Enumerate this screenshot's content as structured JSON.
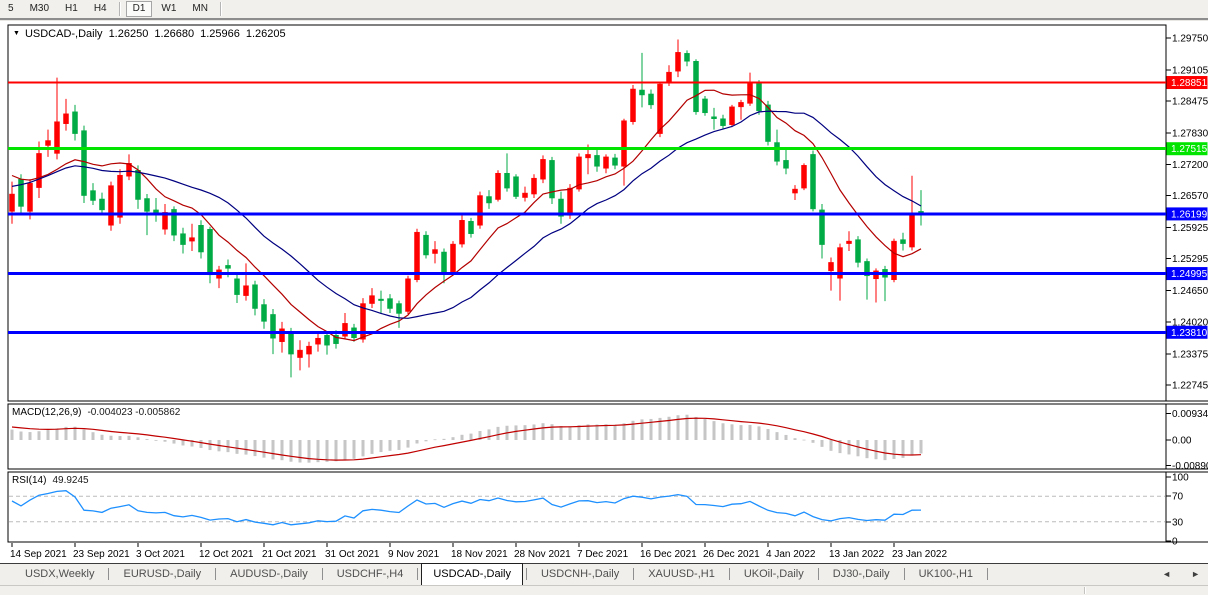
{
  "toolbar": {
    "timeframes": [
      {
        "label": "5",
        "active": false
      },
      {
        "label": "M30",
        "active": false
      },
      {
        "label": "H1",
        "active": false
      },
      {
        "label": "H4",
        "active": false
      },
      {
        "label": "D1",
        "active": true
      },
      {
        "label": "W1",
        "active": false
      },
      {
        "label": "MN",
        "active": false
      }
    ]
  },
  "chart": {
    "title": {
      "dropdown_icon": "▼",
      "symbol": "USDCAD-,Daily",
      "open": "1.26250",
      "high": "1.26680",
      "low": "1.25966",
      "close": "1.26205"
    }
  },
  "indicators": {
    "macd": {
      "label": "MACD(12,26,9)",
      "values": "-0.004023 -0.005862",
      "bar_color": "#C6C6C6",
      "signal_color": "#C00000",
      "axis": [
        {
          "text": "0.009345",
          "value": 0.009345
        },
        {
          "text": "0.00",
          "value": 0
        },
        {
          "text": "-0.008902",
          "value": -0.008902
        }
      ]
    },
    "rsi": {
      "label": "RSI(14)",
      "value": "49.9245",
      "color": "#1E90FF",
      "levels": [
        70,
        30
      ],
      "axis": [
        {
          "text": "100",
          "value": 100
        },
        {
          "text": "70",
          "value": 70
        },
        {
          "text": "30",
          "value": 30
        },
        {
          "text": "0",
          "value": 0
        }
      ]
    }
  },
  "tabs": {
    "scroll_left_icon": "◄",
    "scroll_right_icon": "►",
    "items": [
      {
        "label": "USDX,Weekly",
        "active": false
      },
      {
        "label": "EURUSD-,Daily",
        "active": false
      },
      {
        "label": "AUDUSD-,Daily",
        "active": false
      },
      {
        "label": "USDCHF-,H4",
        "active": false
      },
      {
        "label": "USDCAD-,Daily",
        "active": true
      },
      {
        "label": "USDCNH-,Daily",
        "active": false
      },
      {
        "label": "XAUUSD-,H1",
        "active": false
      },
      {
        "label": "UKOil-,Daily",
        "active": false
      },
      {
        "label": "DJ30-,Daily",
        "active": false
      },
      {
        "label": "UK100-,H1",
        "active": false
      }
    ]
  },
  "chart_data": {
    "type": "candlestick",
    "title": "USDCAD-,Daily",
    "up_color": "#FF0000",
    "down_color": "#00AA44",
    "y_axis": {
      "min": 1.22423,
      "max": 1.30012,
      "labels": [
        {
          "text": "1.29750",
          "value": 1.2975
        },
        {
          "text": "1.29105",
          "value": 1.29105
        },
        {
          "text": "1.28475",
          "value": 1.28475
        },
        {
          "text": "1.27830",
          "value": 1.2783
        },
        {
          "text": "1.27200",
          "value": 1.272
        },
        {
          "text": "1.26570",
          "value": 1.2657
        },
        {
          "text": "1.25925",
          "value": 1.25925
        },
        {
          "text": "1.25295",
          "value": 1.25295
        },
        {
          "text": "1.24650",
          "value": 1.2465
        },
        {
          "text": "1.24020",
          "value": 1.2402
        },
        {
          "text": "1.23375",
          "value": 1.23375
        },
        {
          "text": "1.22745",
          "value": 1.22745
        }
      ]
    },
    "hlines": [
      {
        "price": 1.28851,
        "color": "#FF0000",
        "width": 2,
        "label": "1.28851"
      },
      {
        "price": 1.27515,
        "color": "#00E400",
        "width": 3,
        "label": "1.27515"
      },
      {
        "price": 1.26199,
        "color": "#0000FF",
        "width": 3,
        "label": "1.26199"
      },
      {
        "price": 1.24995,
        "color": "#0000FF",
        "width": 3,
        "label": "1.24995"
      },
      {
        "price": 1.2381,
        "color": "#0000FF",
        "width": 3,
        "label": "1.23810"
      }
    ],
    "x_labels": [
      {
        "label": "14 Sep 2021",
        "index": 0
      },
      {
        "label": "23 Sep 2021",
        "index": 7
      },
      {
        "label": "3 Oct 2021",
        "index": 14
      },
      {
        "label": "12 Oct 2021",
        "index": 21
      },
      {
        "label": "21 Oct 2021",
        "index": 28
      },
      {
        "label": "31 Oct 2021",
        "index": 35
      },
      {
        "label": "9 Nov 2021",
        "index": 42
      },
      {
        "label": "18 Nov 2021",
        "index": 49
      },
      {
        "label": "28 Nov 2021",
        "index": 56
      },
      {
        "label": "7 Dec 2021",
        "index": 63
      },
      {
        "label": "16 Dec 2021",
        "index": 70
      },
      {
        "label": "26 Dec 2021",
        "index": 77
      },
      {
        "label": "4 Jan 2022",
        "index": 84
      },
      {
        "label": "13 Jan 2022",
        "index": 91
      },
      {
        "label": "23 Jan 2022",
        "index": 98
      }
    ],
    "moving_averages": [
      {
        "period": 10,
        "color": "#B30000"
      },
      {
        "period": 21,
        "color": "#000080"
      }
    ],
    "pre_closes": [
      1.248,
      1.25,
      1.252,
      1.254,
      1.256,
      1.258,
      1.2565,
      1.2585,
      1.26,
      1.262,
      1.264,
      1.2665,
      1.269,
      1.27,
      1.271,
      1.272,
      1.2715,
      1.271,
      1.27,
      1.2695,
      1.27,
      1.2705,
      1.271,
      1.27,
      1.2695,
      1.27
    ],
    "candles": [
      [
        1.2625,
        1.2685,
        1.26,
        1.266
      ],
      [
        1.269,
        1.27,
        1.2618,
        1.2635
      ],
      [
        1.2625,
        1.269,
        1.2609,
        1.2682
      ],
      [
        1.2673,
        1.2766,
        1.2652,
        1.2742
      ],
      [
        1.2758,
        1.279,
        1.2735,
        1.2768
      ],
      [
        1.2742,
        1.2895,
        1.273,
        1.2806
      ],
      [
        1.2802,
        1.2852,
        1.2788,
        1.2822
      ],
      [
        1.2826,
        1.284,
        1.2768,
        1.2782
      ],
      [
        1.2788,
        1.2798,
        1.2642,
        1.2657
      ],
      [
        1.2667,
        1.2682,
        1.2638,
        1.2647
      ],
      [
        1.265,
        1.2663,
        1.2617,
        1.2628
      ],
      [
        1.2597,
        1.2685,
        1.2586,
        1.2677
      ],
      [
        1.2613,
        1.271,
        1.26,
        1.2698
      ],
      [
        1.2696,
        1.274,
        1.2688,
        1.2722
      ],
      [
        1.2708,
        1.2718,
        1.263,
        1.2649
      ],
      [
        1.2651,
        1.266,
        1.2577,
        1.2625
      ],
      [
        1.2628,
        1.2652,
        1.2604,
        1.2618
      ],
      [
        1.2589,
        1.264,
        1.2578,
        1.2623
      ],
      [
        1.2629,
        1.2635,
        1.2565,
        1.2577
      ],
      [
        1.258,
        1.2592,
        1.254,
        1.2558
      ],
      [
        1.2565,
        1.26,
        1.2545,
        1.2572
      ],
      [
        1.2597,
        1.2607,
        1.253,
        1.2543
      ],
      [
        1.2589,
        1.2594,
        1.248,
        1.2497
      ],
      [
        1.249,
        1.2515,
        1.247,
        1.2507
      ],
      [
        1.2516,
        1.2528,
        1.2492,
        1.251
      ],
      [
        1.2489,
        1.2498,
        1.244,
        1.2457
      ],
      [
        1.2455,
        1.252,
        1.2445,
        1.2475
      ],
      [
        1.2477,
        1.2485,
        1.2415,
        1.2429
      ],
      [
        1.2437,
        1.2448,
        1.2388,
        1.2403
      ],
      [
        1.2417,
        1.2428,
        1.2337,
        1.2369
      ],
      [
        1.2362,
        1.2402,
        1.234,
        1.2388
      ],
      [
        1.2377,
        1.239,
        1.229,
        1.2337
      ],
      [
        1.233,
        1.2365,
        1.2304,
        1.2345
      ],
      [
        1.2337,
        1.2362,
        1.231,
        1.2353
      ],
      [
        1.2357,
        1.238,
        1.2342,
        1.2369
      ],
      [
        1.2375,
        1.2382,
        1.2336,
        1.2355
      ],
      [
        1.2375,
        1.2385,
        1.2348,
        1.2358
      ],
      [
        1.2373,
        1.242,
        1.2367,
        1.2399
      ],
      [
        1.239,
        1.2398,
        1.2362,
        1.237
      ],
      [
        1.2367,
        1.245,
        1.236,
        1.2439
      ],
      [
        1.2439,
        1.247,
        1.243,
        1.2455
      ],
      [
        1.2448,
        1.2465,
        1.242,
        1.2445
      ],
      [
        1.2449,
        1.2458,
        1.242,
        1.2429
      ],
      [
        1.2439,
        1.2445,
        1.239,
        1.2419
      ],
      [
        1.2423,
        1.2495,
        1.2418,
        1.2489
      ],
      [
        1.2487,
        1.259,
        1.2482,
        1.2583
      ],
      [
        1.2577,
        1.2585,
        1.253,
        1.2537
      ],
      [
        1.254,
        1.2565,
        1.252,
        1.2548
      ],
      [
        1.2543,
        1.255,
        1.248,
        1.25
      ],
      [
        1.2503,
        1.2565,
        1.2498,
        1.2559
      ],
      [
        1.2559,
        1.262,
        1.2552,
        1.2607
      ],
      [
        1.2605,
        1.2612,
        1.2572,
        1.258
      ],
      [
        1.2597,
        1.2665,
        1.259,
        1.2657
      ],
      [
        1.2655,
        1.2668,
        1.263,
        1.2642
      ],
      [
        1.2649,
        1.2708,
        1.2645,
        1.2702
      ],
      [
        1.2702,
        1.2742,
        1.2665,
        1.2672
      ],
      [
        1.2695,
        1.27,
        1.265,
        1.2655
      ],
      [
        1.2653,
        1.2675,
        1.2645,
        1.2662
      ],
      [
        1.266,
        1.27,
        1.2652,
        1.2692
      ],
      [
        1.269,
        1.2738,
        1.2682,
        1.273
      ],
      [
        1.2728,
        1.2735,
        1.264,
        1.2652
      ],
      [
        1.265,
        1.2665,
        1.26,
        1.2615
      ],
      [
        1.2617,
        1.268,
        1.261,
        1.2672
      ],
      [
        1.267,
        1.2742,
        1.2665,
        1.2735
      ],
      [
        1.2733,
        1.276,
        1.27,
        1.274
      ],
      [
        1.2738,
        1.2755,
        1.2705,
        1.2716
      ],
      [
        1.2712,
        1.274,
        1.2702,
        1.2735
      ],
      [
        1.2733,
        1.2741,
        1.271,
        1.2718
      ],
      [
        1.2716,
        1.2812,
        1.2677,
        1.2808
      ],
      [
        1.2806,
        1.288,
        1.28,
        1.2872
      ],
      [
        1.287,
        1.2945,
        1.2835,
        1.286
      ],
      [
        1.2862,
        1.2871,
        1.2832,
        1.284
      ],
      [
        1.2782,
        1.2885,
        1.2775,
        1.2882
      ],
      [
        1.2886,
        1.292,
        1.2878,
        1.2906
      ],
      [
        1.2908,
        1.2972,
        1.2896,
        1.2946
      ],
      [
        1.2944,
        1.295,
        1.2918,
        1.2928
      ],
      [
        1.2928,
        1.2932,
        1.282,
        1.2826
      ],
      [
        1.2852,
        1.2858,
        1.2818,
        1.2824
      ],
      [
        1.2816,
        1.2834,
        1.279,
        1.2812
      ],
      [
        1.2812,
        1.282,
        1.2792,
        1.2798
      ],
      [
        1.28,
        1.284,
        1.2795,
        1.2836
      ],
      [
        1.2836,
        1.285,
        1.281,
        1.2845
      ],
      [
        1.2843,
        1.2905,
        1.2838,
        1.2885
      ],
      [
        1.2883,
        1.289,
        1.282,
        1.2828
      ],
      [
        1.284,
        1.2848,
        1.2758,
        1.2766
      ],
      [
        1.2764,
        1.279,
        1.2718,
        1.2726
      ],
      [
        1.2728,
        1.2752,
        1.27,
        1.2712
      ],
      [
        1.2662,
        1.2678,
        1.2648,
        1.267
      ],
      [
        1.2672,
        1.2722,
        1.2668,
        1.2718
      ],
      [
        1.274,
        1.2748,
        1.2625,
        1.263
      ],
      [
        1.2628,
        1.264,
        1.253,
        1.2558
      ],
      [
        1.2505,
        1.2532,
        1.2465,
        1.2522
      ],
      [
        1.249,
        1.256,
        1.2445,
        1.2552
      ],
      [
        1.256,
        1.2585,
        1.2545,
        1.2565
      ],
      [
        1.2568,
        1.2575,
        1.2512,
        1.2522
      ],
      [
        1.2524,
        1.253,
        1.2447,
        1.2495
      ],
      [
        1.2489,
        1.251,
        1.2441,
        1.2505
      ],
      [
        1.2508,
        1.2515,
        1.2444,
        1.2492
      ],
      [
        1.2487,
        1.257,
        1.2482,
        1.2565
      ],
      [
        1.2568,
        1.2582,
        1.2546,
        1.256
      ],
      [
        1.2553,
        1.2697,
        1.2546,
        1.2619
      ],
      [
        1.2625,
        1.2668,
        1.25966,
        1.26205
      ]
    ]
  }
}
